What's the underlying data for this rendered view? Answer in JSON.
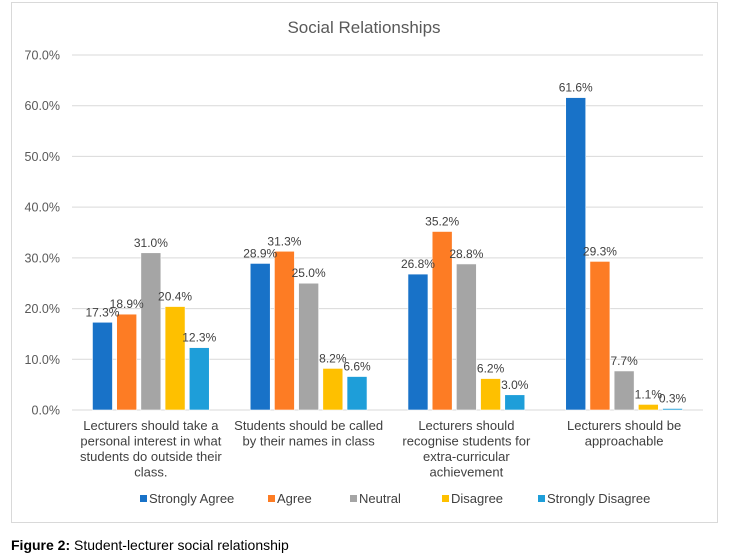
{
  "chart_data": {
    "type": "bar",
    "title": "Social Relationships",
    "xlabel": "",
    "ylabel": "",
    "ylim": [
      0,
      70
    ],
    "yticks": [
      "0.0%",
      "10.0%",
      "20.0%",
      "30.0%",
      "40.0%",
      "50.0%",
      "60.0%",
      "70.0%"
    ],
    "grid": true,
    "legend_position": "bottom",
    "categories": [
      [
        "Lecturers should take a",
        "personal interest in what",
        "students do outside their",
        "class."
      ],
      [
        "Students should be called",
        "by their names in class"
      ],
      [
        "Lecturers should",
        "recognise students for",
        "extra-curricular",
        "achievement"
      ],
      [
        "Lecturers should be",
        "approachable"
      ]
    ],
    "series": [
      {
        "name": "Strongly Agree",
        "color": "#1872c8",
        "values": [
          17.3,
          28.9,
          26.8,
          61.6
        ]
      },
      {
        "name": "Agree",
        "color": "#fd7c24",
        "values": [
          18.9,
          31.3,
          35.2,
          29.3
        ]
      },
      {
        "name": "Neutral",
        "color": "#a5a5a5",
        "values": [
          31.0,
          25.0,
          28.8,
          7.7
        ]
      },
      {
        "name": "Disagree",
        "color": "#fec000",
        "values": [
          20.4,
          8.2,
          6.2,
          1.1
        ]
      },
      {
        "name": "Strongly Disagree",
        "color": "#1e9ed9",
        "values": [
          12.3,
          6.6,
          3.0,
          0.3
        ]
      }
    ]
  },
  "caption": {
    "label": "Figure 2:",
    "text": " Student-lecturer social relationship"
  }
}
